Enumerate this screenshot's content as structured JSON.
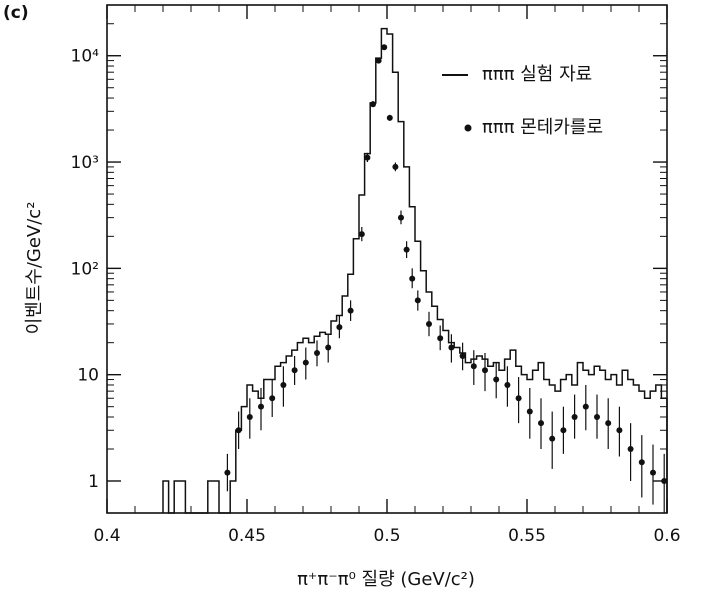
{
  "panel_label": "(c)",
  "chart_data": {
    "type": "line",
    "xlabel": "π⁺π⁻π⁰ 질량 (GeV/c²)",
    "ylabel": "이벤트수/GeV/c²",
    "xlim": [
      0.4,
      0.6
    ],
    "ylim": [
      0.5,
      30000
    ],
    "yscale": "log",
    "x_ticks": [
      0.4,
      0.45,
      0.5,
      0.55,
      0.6
    ],
    "x_tick_labels": [
      "0.4",
      "0.45",
      "0.5",
      "0.55",
      "0.6"
    ],
    "y_tick_values": [
      1,
      10,
      100,
      1000,
      10000
    ],
    "y_tick_labels": [
      "1",
      "10",
      "10²",
      "10³",
      "10⁴"
    ],
    "legend_position": "top-right",
    "series": [
      {
        "name": "πππ 실험 자료",
        "style": "histogram",
        "x": [
          0.42,
          0.422,
          0.424,
          0.426,
          0.428,
          0.43,
          0.432,
          0.434,
          0.436,
          0.438,
          0.44,
          0.442,
          0.444,
          0.446,
          0.448,
          0.45,
          0.452,
          0.454,
          0.456,
          0.458,
          0.46,
          0.462,
          0.464,
          0.466,
          0.468,
          0.47,
          0.472,
          0.474,
          0.476,
          0.478,
          0.48,
          0.482,
          0.484,
          0.486,
          0.488,
          0.49,
          0.492,
          0.494,
          0.496,
          0.498,
          0.5,
          0.502,
          0.504,
          0.506,
          0.508,
          0.51,
          0.512,
          0.514,
          0.516,
          0.518,
          0.52,
          0.522,
          0.524,
          0.526,
          0.528,
          0.53,
          0.532,
          0.534,
          0.536,
          0.538,
          0.54,
          0.542,
          0.544,
          0.546,
          0.548,
          0.55,
          0.552,
          0.554,
          0.556,
          0.558,
          0.56,
          0.562,
          0.564,
          0.566,
          0.568,
          0.57,
          0.572,
          0.574,
          0.576,
          0.578,
          0.58,
          0.582,
          0.584,
          0.586,
          0.588,
          0.59,
          0.592,
          0.594,
          0.596,
          0.598
        ],
        "y": [
          1,
          0,
          1,
          1,
          0,
          0,
          0,
          0,
          1,
          1,
          0,
          0,
          1,
          3,
          5,
          8,
          7,
          6,
          9,
          9,
          12,
          13,
          15,
          17,
          20,
          22,
          20,
          23,
          25,
          24,
          32,
          36,
          55,
          88,
          190,
          490,
          1200,
          3600,
          9500,
          18000,
          16000,
          7000,
          2400,
          900,
          380,
          180,
          95,
          60,
          44,
          33,
          26,
          20,
          18,
          16,
          13,
          14,
          15,
          14,
          12,
          13,
          11,
          14,
          17,
          12,
          10,
          9,
          11,
          13,
          9,
          8,
          7,
          9,
          10,
          8,
          13,
          11,
          10,
          12,
          11,
          9,
          10,
          8,
          11,
          9,
          8,
          7,
          6,
          7,
          8,
          6
        ]
      },
      {
        "name": "πππ 몬테카를로",
        "style": "points",
        "x": [
          0.443,
          0.447,
          0.451,
          0.455,
          0.459,
          0.463,
          0.467,
          0.471,
          0.475,
          0.479,
          0.483,
          0.487,
          0.491,
          0.493,
          0.495,
          0.497,
          0.499,
          0.501,
          0.503,
          0.505,
          0.507,
          0.509,
          0.511,
          0.515,
          0.519,
          0.523,
          0.527,
          0.531,
          0.535,
          0.539,
          0.543,
          0.547,
          0.551,
          0.555,
          0.559,
          0.563,
          0.567,
          0.571,
          0.575,
          0.579,
          0.583,
          0.587,
          0.591,
          0.595,
          0.599
        ],
        "y": [
          1.2,
          3,
          4,
          5,
          6,
          8,
          11,
          13,
          16,
          18,
          28,
          40,
          210,
          1100,
          3500,
          9000,
          12000,
          2600,
          900,
          300,
          150,
          80,
          50,
          30,
          22,
          18,
          15,
          12,
          11,
          9,
          8,
          6,
          4.5,
          3.5,
          2.5,
          3,
          4,
          5,
          4,
          3.5,
          3,
          2,
          1.5,
          1.2,
          1
        ],
        "err_low": [
          0.4,
          1,
          1.5,
          2,
          2,
          3,
          3,
          4,
          4,
          5,
          6,
          8,
          30,
          100,
          200,
          300,
          400,
          150,
          80,
          40,
          25,
          15,
          10,
          7,
          5,
          5,
          4,
          4,
          4,
          3,
          3,
          2.5,
          2,
          1.5,
          1.2,
          1.2,
          1.5,
          2,
          1.5,
          1.5,
          1.3,
          1,
          0.8,
          0.6,
          0.5
        ],
        "err_high": [
          0.6,
          1.5,
          2,
          2.5,
          3,
          4,
          4,
          5,
          5,
          6,
          8,
          10,
          35,
          120,
          250,
          350,
          450,
          180,
          90,
          50,
          30,
          20,
          12,
          9,
          7,
          6,
          5,
          5,
          5,
          4,
          4,
          3.5,
          3,
          2.5,
          2,
          2,
          2.5,
          3,
          2.5,
          2.5,
          2,
          1.5,
          1.2,
          1,
          0.8
        ]
      }
    ]
  }
}
